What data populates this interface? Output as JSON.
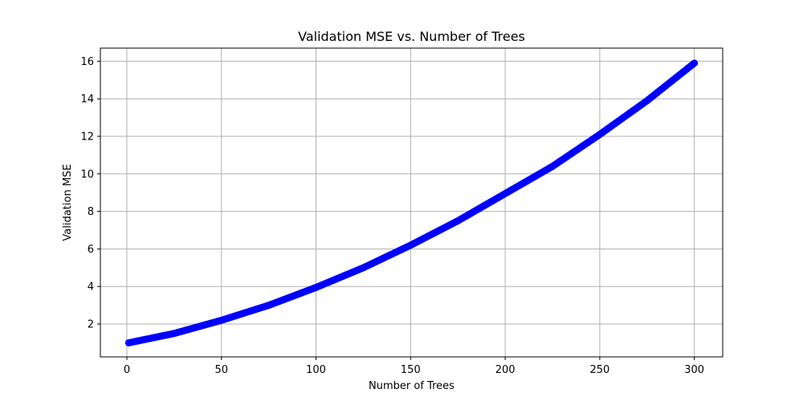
{
  "chart_data": {
    "type": "line",
    "title": "Validation MSE vs. Number of Trees",
    "xlabel": "Number of Trees",
    "ylabel": "Validation MSE",
    "xlim": [
      -14,
      315
    ],
    "ylim": [
      0.25,
      16.7
    ],
    "xticks": [
      0,
      50,
      100,
      150,
      200,
      250,
      300
    ],
    "yticks": [
      2,
      4,
      6,
      8,
      10,
      12,
      14,
      16
    ],
    "grid": true,
    "series": [
      {
        "color": "#0000ff",
        "marker": "circle",
        "x_start": 1,
        "x_end": 300,
        "x_step": 1,
        "x": [
          1,
          25,
          50,
          75,
          100,
          125,
          150,
          175,
          200,
          225,
          250,
          275,
          300
        ],
        "y": [
          1.0,
          1.5,
          2.2,
          3.0,
          3.95,
          5.0,
          6.2,
          7.5,
          8.95,
          10.4,
          12.1,
          13.9,
          15.9
        ]
      }
    ]
  }
}
